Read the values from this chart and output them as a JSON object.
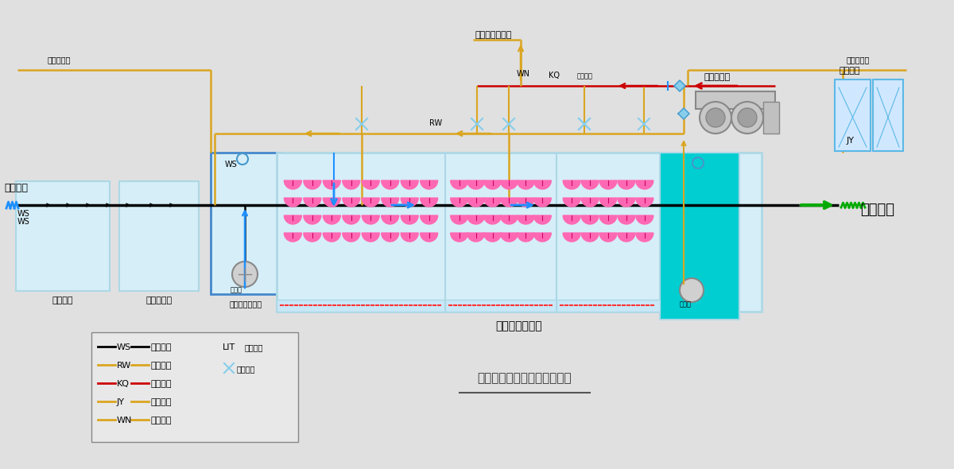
{
  "title": "一体化污水生化处理工艺流程",
  "bg_color": "#e0e0e0",
  "sludge_top_label": "污泥排至污泥池",
  "blower_label": "罗茨鼓风机",
  "disinfect_label": "消毒装置",
  "integrated_label": "一体化处理设备",
  "inlet_label": "医院污水",
  "outlet_label": "达标排放",
  "pre_disinfect_label": "预消毒池",
  "three_sep_label": "三格化粪池",
  "flow_adjust_label": "水质水量调节池",
  "sludge_return_label": "污泥回流",
  "add_chemical_label": "运营部提加",
  "ws_label": "WS",
  "rw_label": "RW",
  "kq_label": "KQ",
  "jy_label": "JY",
  "wn_label": "WN",
  "lit_label": "LIT",
  "lit_desc": "液位开关",
  "valve_desc": "手动阀门",
  "ws_desc": "污水管道",
  "rw_desc": "回流管道",
  "kq_desc": "空气管道",
  "jy_desc": "加药管道",
  "wn_desc": "污泥管道",
  "sludge_pump_label": "污泥泵",
  "lift_pump_label": "提升泵",
  "pipe_ws": "#000000",
  "pipe_rw": "#DAA520",
  "pipe_kq": "#CC0000",
  "pipe_jy": "#DAA520",
  "pipe_wn": "#DAA520",
  "color_tank": "#ADD8E6",
  "color_tank_face": "#D6EEF8",
  "color_aerator": "#FF69B4",
  "color_teal": "#00CED1",
  "color_green_arrow": "#00AA00",
  "color_blue_arrow": "#1E90FF",
  "color_dark_blue": "#00008B"
}
